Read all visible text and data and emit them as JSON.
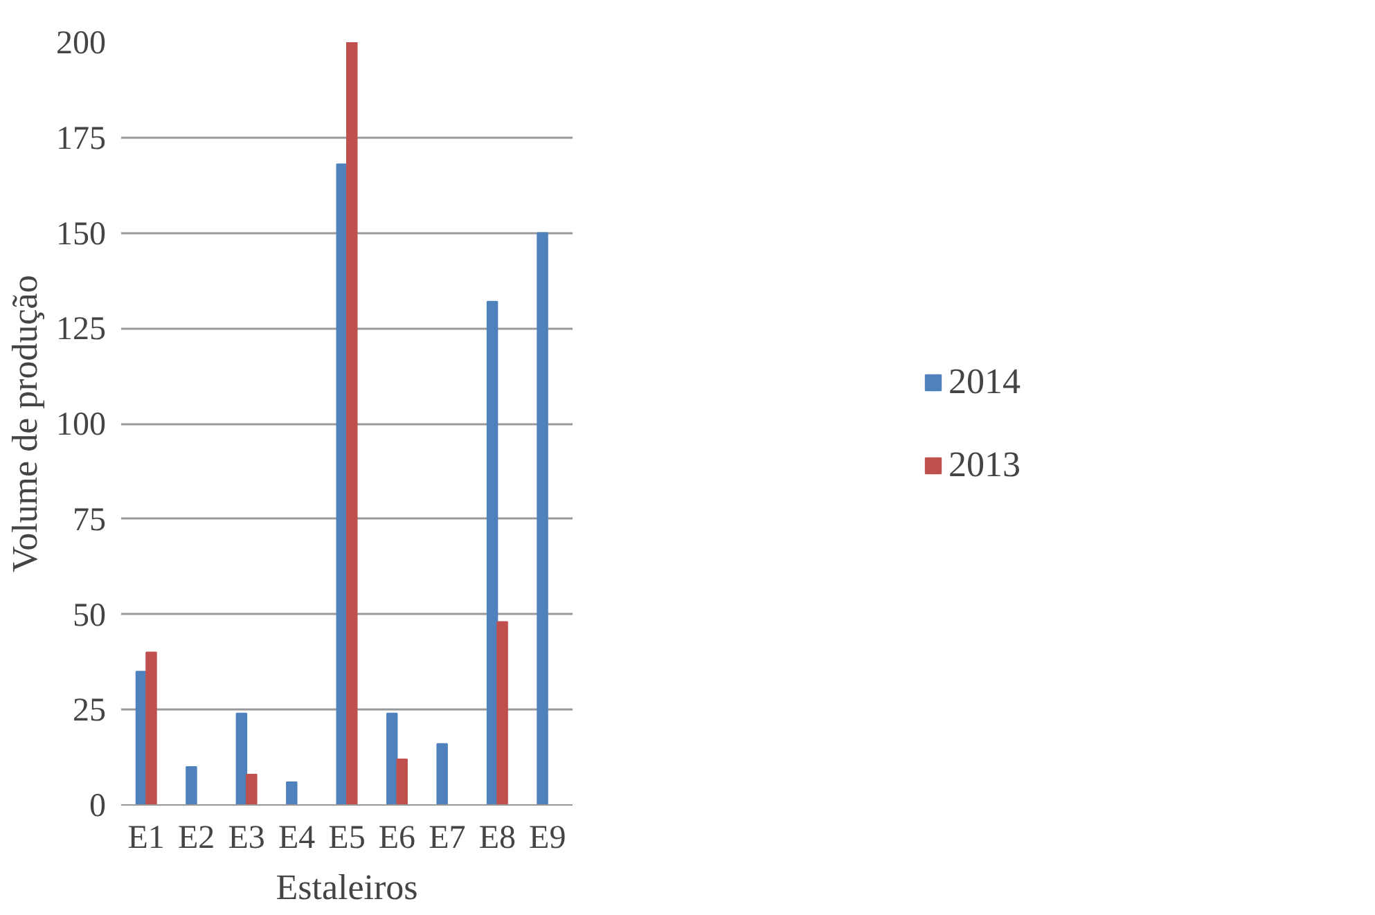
{
  "chart_data": {
    "type": "bar",
    "xlabel": "Estaleiros",
    "ylabel": "Volume de produção",
    "categories": [
      "E1",
      "E2",
      "E3",
      "E4",
      "E5",
      "E6",
      "E7",
      "E8",
      "E9"
    ],
    "series": [
      {
        "name": "2014",
        "color": "#4f81bd",
        "values": [
          35,
          10,
          24,
          6,
          168,
          24,
          16,
          132,
          150
        ]
      },
      {
        "name": "2013",
        "color": "#c0504d",
        "values": [
          40,
          0,
          8,
          0,
          200,
          12,
          0,
          48,
          0
        ]
      }
    ],
    "ylim": [
      0,
      200
    ],
    "yticks": [
      0,
      25,
      50,
      75,
      100,
      125,
      150,
      175,
      200
    ],
    "grid": "y",
    "legend": "right"
  }
}
